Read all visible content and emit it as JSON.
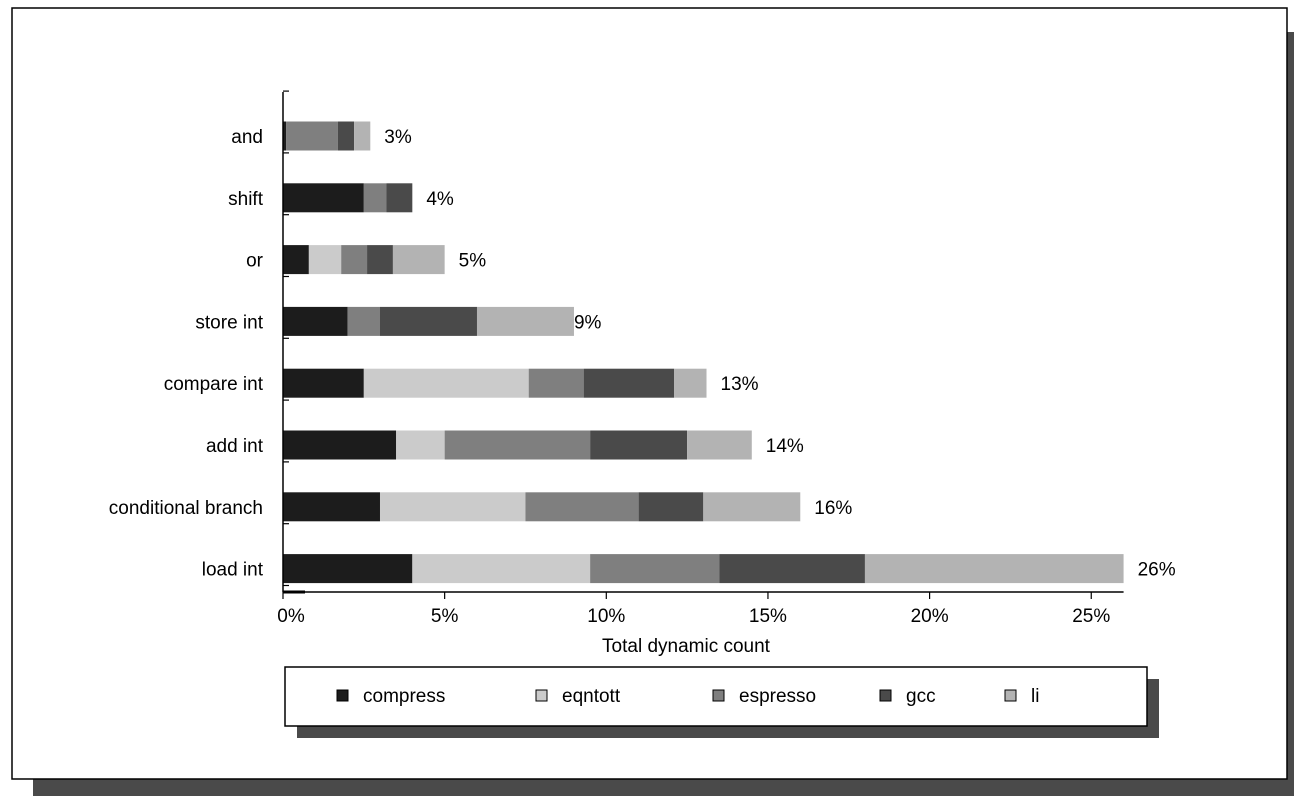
{
  "chart_data": {
    "type": "bar",
    "orientation": "horizontal",
    "stacked": true,
    "categories": [
      "and",
      "shift",
      "or",
      "store int",
      "compare int",
      "add int",
      "conditional branch",
      "load int"
    ],
    "series": [
      {
        "name": "compress",
        "values": [
          0.1,
          2.5,
          0.8,
          2.0,
          2.5,
          3.5,
          3.0,
          4.0
        ],
        "color": "#1c1c1c"
      },
      {
        "name": "eqntott",
        "values": [
          0,
          0,
          1.0,
          0,
          5.1,
          1.5,
          4.5,
          5.5
        ],
        "color": "#cbcbcb"
      },
      {
        "name": "espresso",
        "values": [
          1.6,
          0.7,
          0.8,
          1.0,
          1.7,
          4.5,
          3.5,
          4.0
        ],
        "color": "#7f7f7f"
      },
      {
        "name": "gcc",
        "values": [
          0.5,
          0.8,
          0.8,
          3.0,
          2.8,
          3.0,
          2.0,
          4.5
        ],
        "color": "#4a4a4a"
      },
      {
        "name": "li",
        "values": [
          0.5,
          0,
          1.6,
          3.0,
          1.0,
          2.0,
          3.0,
          8.0
        ],
        "color": "#b3b3b3"
      }
    ],
    "totals": [
      "3%",
      "4%",
      "5%",
      "9%",
      "13%",
      "14%",
      "16%",
      "26%"
    ],
    "x_ticks": [
      "0%",
      "5%",
      "10%",
      "15%",
      "20%",
      "25%"
    ],
    "xlim": [
      0,
      26
    ],
    "xlabel": "Total dynamic count",
    "ylabel": "",
    "grid": false,
    "legend_position": "bottom"
  }
}
